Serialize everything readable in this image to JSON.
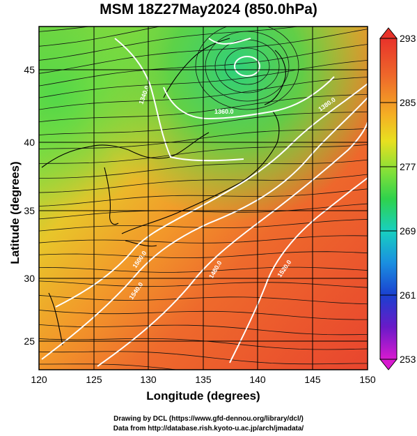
{
  "title": "MSM 18Z27May2024 (850.0hPa)",
  "xaxis": {
    "label": "Longitude (degrees)",
    "ticks": [
      "120",
      "125",
      "130",
      "135",
      "140",
      "145",
      "150"
    ]
  },
  "yaxis": {
    "label": "Latitude  (degrees)",
    "ticks": [
      "25",
      "30",
      "35",
      "40",
      "45"
    ]
  },
  "colorbar": {
    "labels": [
      "293",
      "285",
      "277",
      "269",
      "261",
      "253"
    ],
    "colors": [
      "#e8322a",
      "#f08a26",
      "#f6d21e",
      "#b5e22b",
      "#3fd44a",
      "#16c9b0",
      "#1a8fe0",
      "#1a3ccc",
      "#7a1acb",
      "#d81ad0"
    ]
  },
  "contours": [
    "1540.0",
    "1520.0",
    "1500.0",
    "1480.0",
    "1360.0",
    "1340.0",
    "1380.0"
  ],
  "credits": [
    "Drawing by DCL (https://www.gfd-dennou.org/library/dcl/)",
    "Data from http://database.rish.kyoto-u.ac.jp/arch/jmadata/"
  ]
}
